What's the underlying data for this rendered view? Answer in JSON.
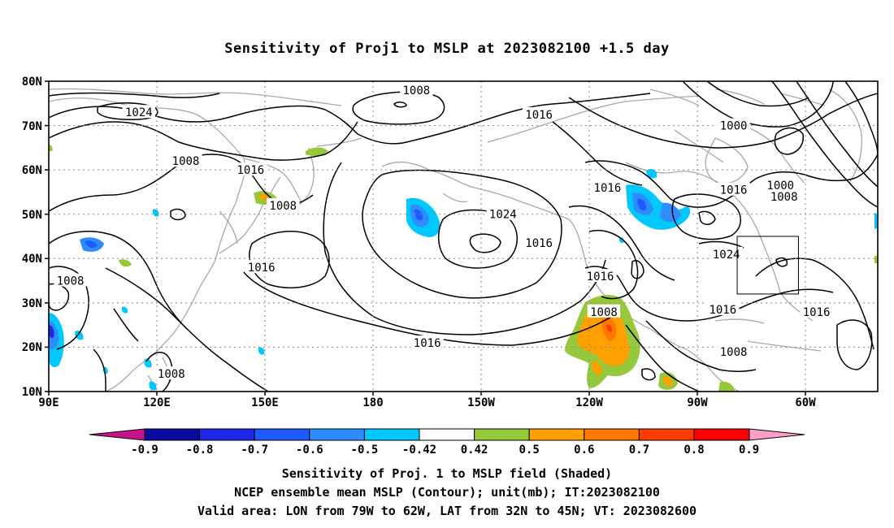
{
  "title": "Sensitivity of Proj1 to MSLP at 2023082100 +1.5 day",
  "lat_labels": [
    "80N",
    "70N",
    "60N",
    "50N",
    "40N",
    "30N",
    "20N",
    "10N"
  ],
  "lon_labels": [
    "90E",
    "120E",
    "150E",
    "180",
    "150W",
    "120W",
    "90W",
    "60W"
  ],
  "contour_labels": [
    {
      "text": "1008",
      "lon": -168,
      "lat": 78
    },
    {
      "text": "1024",
      "lon": 115,
      "lat": 73
    },
    {
      "text": "1016",
      "lon": -134,
      "lat": 72.5
    },
    {
      "text": "1000",
      "lon": -80,
      "lat": 70
    },
    {
      "text": "1008",
      "lon": 128,
      "lat": 62
    },
    {
      "text": "1016",
      "lon": 146,
      "lat": 60
    },
    {
      "text": "1016",
      "lon": -115,
      "lat": 56
    },
    {
      "text": "1016",
      "lon": -80,
      "lat": 55.5
    },
    {
      "text": "1000",
      "lon": -67,
      "lat": 56.5
    },
    {
      "text": "1008",
      "lon": -66,
      "lat": 54
    },
    {
      "text": "1008",
      "lon": 155,
      "lat": 52
    },
    {
      "text": "1024",
      "lon": -144,
      "lat": 50
    },
    {
      "text": "1016",
      "lon": -134,
      "lat": 43.5
    },
    {
      "text": "1024",
      "lon": -82,
      "lat": 41
    },
    {
      "text": "1016",
      "lon": 149,
      "lat": 38
    },
    {
      "text": "1016",
      "lon": -117,
      "lat": 36
    },
    {
      "text": "1008",
      "lon": 96,
      "lat": 35
    },
    {
      "text": "1008",
      "lon": -116,
      "lat": 28
    },
    {
      "text": "1016",
      "lon": -83,
      "lat": 28.5
    },
    {
      "text": "1016",
      "lon": -57,
      "lat": 28
    },
    {
      "text": "1016",
      "lon": -165,
      "lat": 21
    },
    {
      "text": "1008",
      "lon": -80,
      "lat": 19
    },
    {
      "text": "1008",
      "lon": 124,
      "lat": 14
    }
  ],
  "valid_area": {
    "lon_min": -79,
    "lon_max": -62,
    "lat_min": 32,
    "lat_max": 45
  },
  "colorbar": {
    "labels": [
      "-0.9",
      "-0.8",
      "-0.7",
      "-0.6",
      "-0.5",
      "-0.42",
      "0.42",
      "0.5",
      "0.6",
      "0.7",
      "0.8",
      "0.9"
    ],
    "colors": [
      "#0a0aa0",
      "#1e28e6",
      "#1e5aff",
      "#2d8cff",
      "#00c8ff",
      "#ffffff",
      "#96c83c",
      "#ffa000",
      "#ff7800",
      "#ff3c00",
      "#ff0000"
    ],
    "low_arrow_color": "#c8148c",
    "high_arrow_color": "#ff9ec8"
  },
  "captions": [
    "Sensitivity of Proj. 1 to MSLP field (Shaded)",
    "NCEP ensemble mean MSLP (Contour); unit(mb); IT:2023082100",
    "Valid area: LON from 79W to 62W, LAT from 32N to 45N; VT: 2023082600"
  ]
}
